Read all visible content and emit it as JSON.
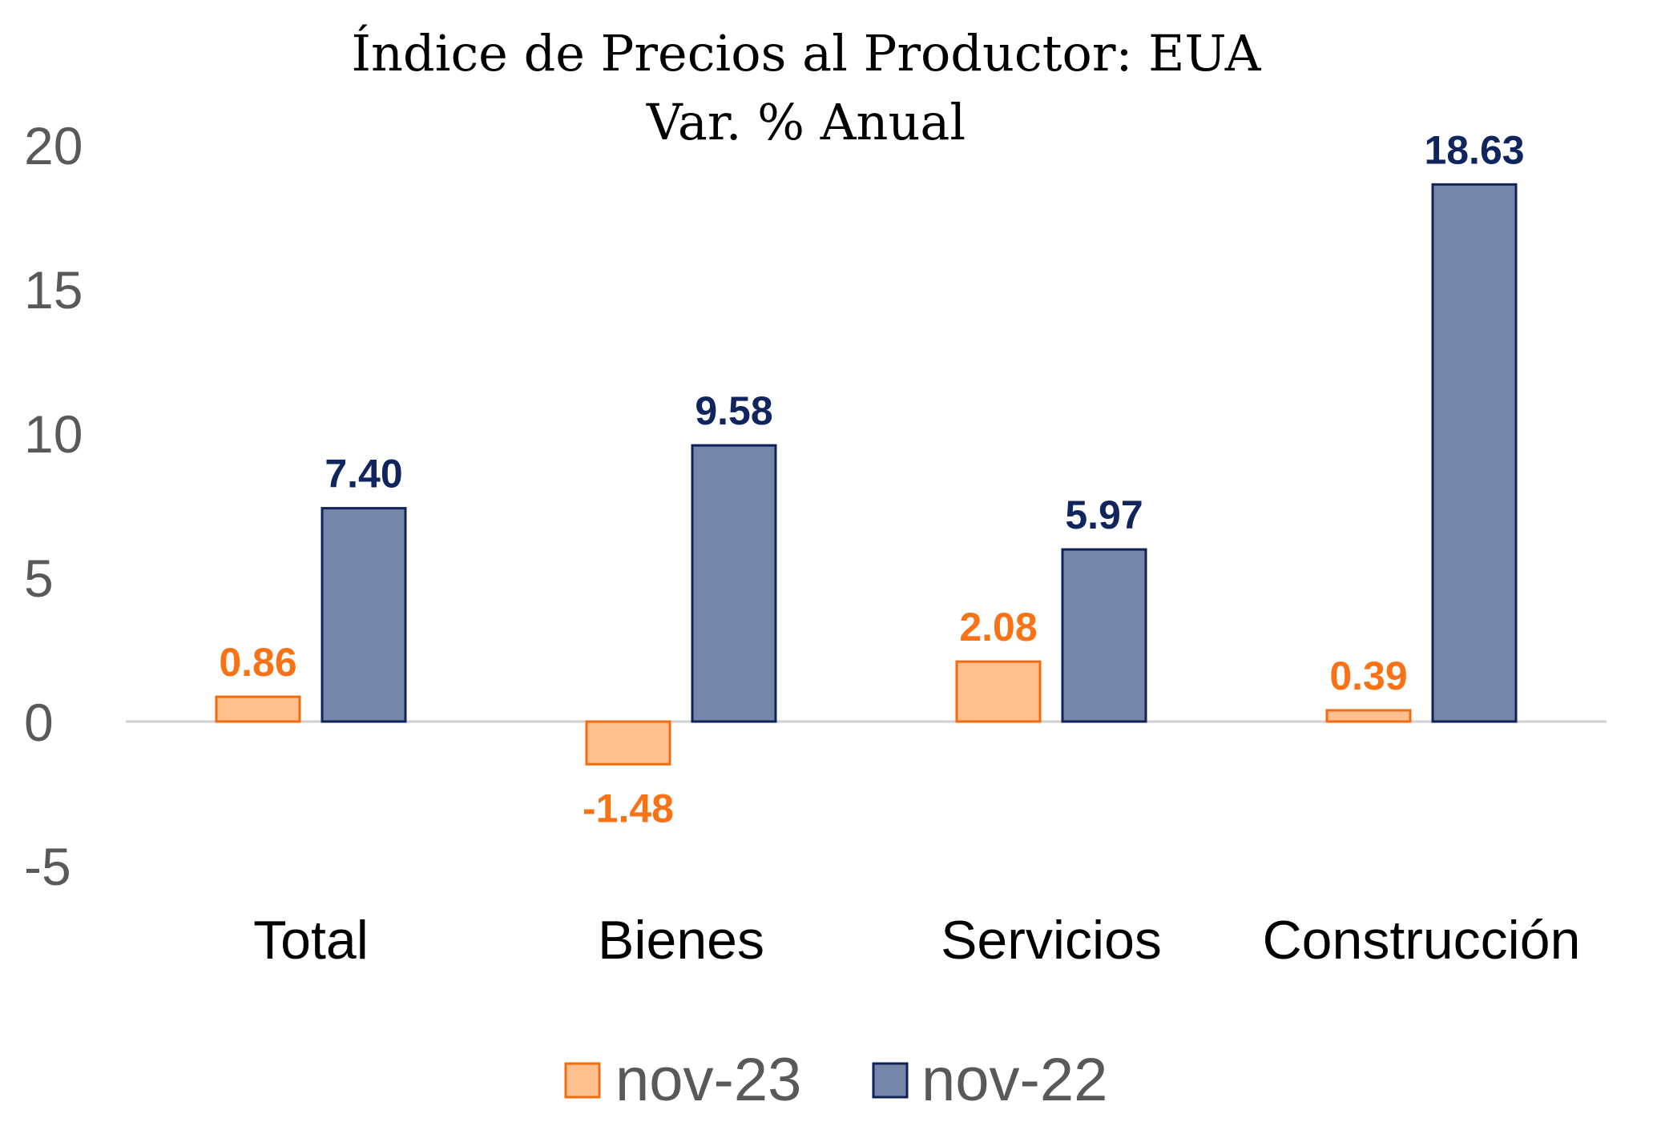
{
  "chart_data": {
    "type": "bar",
    "title": "Índice de Precios al Productor: EUA",
    "subtitle": "Var. % Anual",
    "categories": [
      "Total",
      "Bienes",
      "Servicios",
      "Construcción"
    ],
    "series": [
      {
        "name": "nov-23",
        "values": [
          0.86,
          -1.48,
          2.08,
          0.39
        ],
        "labels": [
          "0.86",
          "-1.48",
          "2.08",
          "0.39"
        ],
        "fill": "#FFBF8F",
        "stroke": "#F26B0F",
        "label_color": "#F97316"
      },
      {
        "name": "nov-22",
        "values": [
          7.4,
          9.58,
          5.97,
          18.63
        ],
        "labels": [
          "7.40",
          "9.58",
          "5.97",
          "18.63"
        ],
        "fill": "#7586A8",
        "stroke": "#10225A",
        "label_color": "#10245E"
      }
    ],
    "ylim": [
      -5,
      20
    ],
    "yticks": [
      20,
      15,
      10,
      5,
      0,
      -5
    ],
    "xlabel": "",
    "ylabel": "",
    "grid": false,
    "legend": "bottom-center",
    "axis_color": "#D0D0D0"
  }
}
